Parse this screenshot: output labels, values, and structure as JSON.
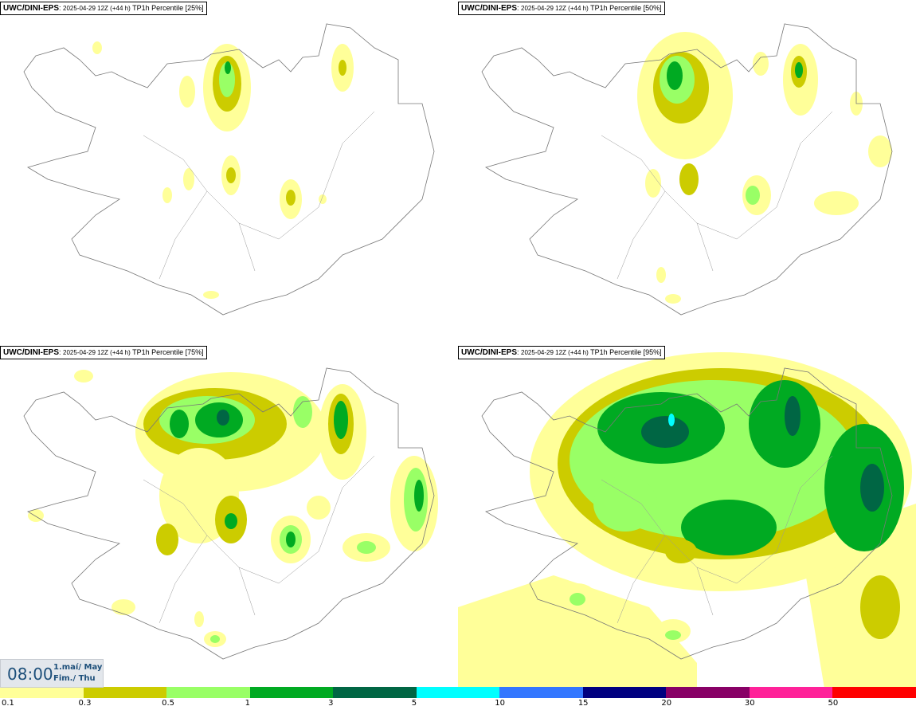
{
  "panels": [
    {
      "source": "UWC/DINI-EPS",
      "meta": "2025-04-29 12Z (+44 h)",
      "title": "TP1h Percentile [25%]"
    },
    {
      "source": "UWC/DINI-EPS",
      "meta": "2025-04-29 12Z (+44 h)",
      "title": "TP1h Percentile [50%]"
    },
    {
      "source": "UWC/DINI-EPS",
      "meta": "2025-04-29 12Z (+44 h)",
      "title": "TP1h Percentile [75%]"
    },
    {
      "source": "UWC/DINI-EPS",
      "meta": "2025-04-29 12Z (+44 h)",
      "title": "TP1h Percentile [95%]"
    }
  ],
  "valid_time": {
    "time": "08:00",
    "date_line1": "1.maí/ May",
    "date_line2": "Fim./ Thu"
  },
  "legend": {
    "labels": [
      "0.1",
      "0.3",
      "0.5",
      "1",
      "3",
      "5",
      "10",
      "15",
      "20",
      "30",
      "50"
    ],
    "colors": [
      "#ffff99",
      "#cccc00",
      "#99ff66",
      "#00aa22",
      "#006644",
      "#00ffff",
      "#3377ff",
      "#000080",
      "#880066",
      "#ff2299",
      "#ff0000"
    ]
  }
}
